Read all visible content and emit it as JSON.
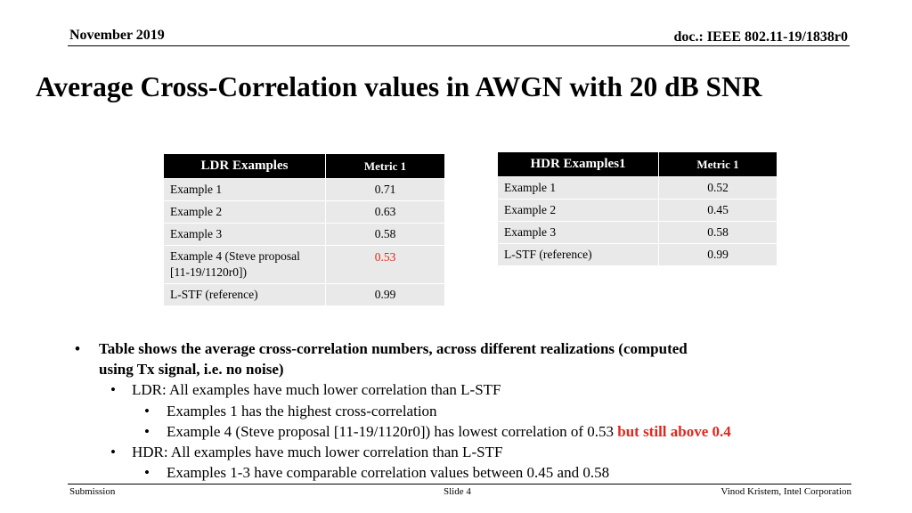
{
  "header": {
    "date": "November 2019",
    "doc": "doc.: IEEE 802.11-19/1838r0"
  },
  "title": "Average Cross-Correlation values in AWGN with 20 dB SNR",
  "ldr_table": {
    "headers": [
      "LDR Examples",
      "Metric 1"
    ],
    "rows": [
      [
        "Example 1",
        "0.71"
      ],
      [
        "Example 2",
        "0.63"
      ],
      [
        "Example 3",
        "0.58"
      ],
      [
        "Example 4 (Steve proposal [11-19/1120r0])",
        "0.53"
      ],
      [
        "L-STF (reference)",
        "0.99"
      ]
    ],
    "highlight_color": "#e3261c"
  },
  "hdr_table": {
    "headers": [
      "HDR Examples1",
      "Metric 1"
    ],
    "rows": [
      [
        "Example 1",
        "0.52"
      ],
      [
        "Example 2",
        "0.45"
      ],
      [
        "Example 3",
        "0.58"
      ],
      [
        "L-STF (reference)",
        "0.99"
      ]
    ]
  },
  "bullets": {
    "b1": "Table shows the average cross-correlation numbers, across different realizations (computed using Tx signal, i.e. no noise)",
    "b2": "LDR: All examples have much lower correlation than L-STF",
    "b3": "Examples 1 has the highest cross-correlation",
    "b4_text": "Example 4 (Steve proposal [11-19/1120r0]) has lowest correlation of 0.53",
    "b4_red": "but still above 0.4",
    "b5": "HDR: All examples have much lower correlation than L-STF",
    "b6": "Examples 1-3 have comparable correlation values between 0.45 and 0.58"
  },
  "footer": {
    "left": "Submission",
    "center": "Slide 4",
    "right": "Vinod Kristem, Intel Corporation"
  }
}
